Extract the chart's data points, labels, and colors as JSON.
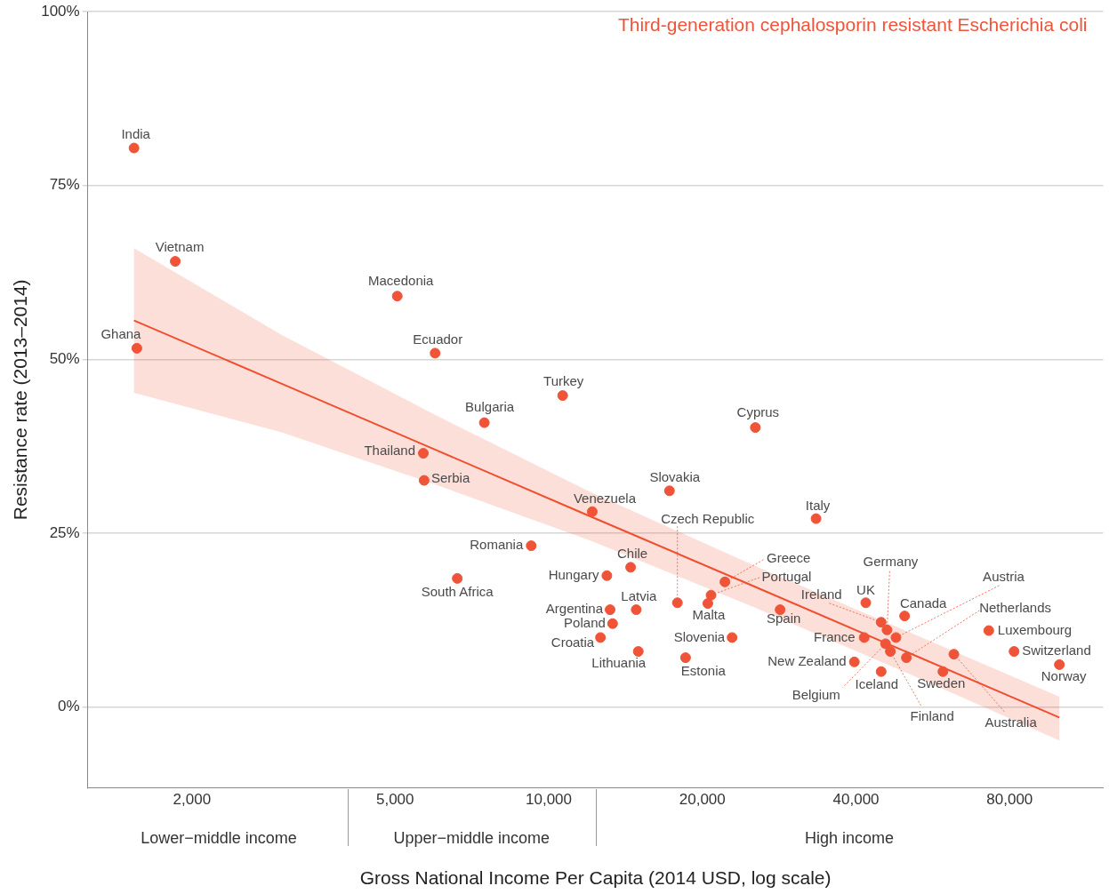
{
  "chart_data": {
    "type": "scatter",
    "title": "Third-generation cephalosporin resistant Escherichia coli",
    "xlabel": "Gross National Income Per Capita (2014 USD, log scale)",
    "ylabel": "Resistance rate (2013–2014)",
    "log": "x",
    "grid": "y",
    "xlim": [
      1250,
      122000
    ],
    "ylim": [
      -11.6,
      100
    ],
    "xticks": [
      {
        "value": 2000,
        "label": "2,000"
      },
      {
        "value": 5000,
        "label": "5,000"
      },
      {
        "value": 10000,
        "label": "10,000"
      },
      {
        "value": 20000,
        "label": "20,000"
      },
      {
        "value": 40000,
        "label": "40,000"
      },
      {
        "value": 80000,
        "label": "80,000"
      }
    ],
    "yticks": [
      {
        "value": 0,
        "label": "0%"
      },
      {
        "value": 25,
        "label": "25%"
      },
      {
        "value": 50,
        "label": "50%"
      },
      {
        "value": 75,
        "label": "75%"
      },
      {
        "value": 100,
        "label": "100%"
      }
    ],
    "series": [
      {
        "color": "#ef5338",
        "marker": "circle",
        "x": [
          1540,
          1855,
          1560,
          5050,
          5990,
          10650,
          7480,
          25400,
          5680,
          5700,
          17240,
          12170,
          33400,
          9240,
          6620,
          14470,
          13000,
          17870,
          22140,
          20800,
          20500,
          13190,
          14840,
          13340,
          12630,
          14980,
          18540,
          22870,
          28400,
          41800,
          49800,
          41500,
          39700,
          44800,
          44800,
          46000,
          47900,
          50200,
          45700,
          46700,
          59200,
          62200,
          72800,
          81600,
          100100
        ],
        "values": [
          80.4,
          64.1,
          51.6,
          59.1,
          50.9,
          44.8,
          40.9,
          40.2,
          36.5,
          32.6,
          31.1,
          28.1,
          27.1,
          23.2,
          18.5,
          20.1,
          18.9,
          15.0,
          18.0,
          16.1,
          14.9,
          14.0,
          14.0,
          12.0,
          10.0,
          8.0,
          7.1,
          10.0,
          14.0,
          15.0,
          13.1,
          10.0,
          6.5,
          5.1,
          12.2,
          11.1,
          10.0,
          7.1,
          9.1,
          8.0,
          5.1,
          7.6,
          11.0,
          8.0,
          6.1
        ]
      },
      {
        "type": "line",
        "color": "#f04e2e",
        "x": [
          1540,
          3000,
          6000,
          12000,
          25000,
          50000,
          100100
        ],
        "values": [
          55.6,
          46.5,
          37.0,
          27.5,
          17.5,
          8.0,
          -1.5
        ],
        "lower": [
          45.2,
          39.5,
          32.0,
          24.0,
          14.5,
          5.0,
          -4.8
        ],
        "upper": [
          66.0,
          53.5,
          42.0,
          31.0,
          20.5,
          11.0,
          1.5
        ]
      }
    ],
    "annotations": [
      {
        "text": "India",
        "x": 1540,
        "y": 80.4
      },
      {
        "text": "Vietnam",
        "x": 1855,
        "y": 64.1
      },
      {
        "text": "Ghana",
        "x": 1560,
        "y": 51.6
      },
      {
        "text": "Macedonia",
        "x": 5050,
        "y": 59.1
      },
      {
        "text": "Ecuador",
        "x": 5990,
        "y": 50.9
      },
      {
        "text": "Turkey",
        "x": 10650,
        "y": 44.8
      },
      {
        "text": "Bulgaria",
        "x": 7480,
        "y": 40.9
      },
      {
        "text": "Cyprus",
        "x": 25400,
        "y": 40.2
      },
      {
        "text": "Thailand",
        "x": 5680,
        "y": 36.5
      },
      {
        "text": "Serbia",
        "x": 5700,
        "y": 32.6
      },
      {
        "text": "Slovakia",
        "x": 17240,
        "y": 31.1
      },
      {
        "text": "Venezuela",
        "x": 12170,
        "y": 28.1
      },
      {
        "text": "Italy",
        "x": 33400,
        "y": 27.1
      },
      {
        "text": "Romania",
        "x": 9240,
        "y": 23.2
      },
      {
        "text": "South Africa",
        "x": 6620,
        "y": 18.5
      },
      {
        "text": "Chile",
        "x": 14470,
        "y": 20.1
      },
      {
        "text": "Hungary",
        "x": 13000,
        "y": 18.9
      },
      {
        "text": "Czech Republic",
        "x": 17870,
        "y": 15.0
      },
      {
        "text": "Greece",
        "x": 22140,
        "y": 18.0
      },
      {
        "text": "Portugal",
        "x": 20800,
        "y": 16.1
      },
      {
        "text": "Malta",
        "x": 20500,
        "y": 14.9
      },
      {
        "text": "Argentina",
        "x": 13190,
        "y": 14.0
      },
      {
        "text": "Latvia",
        "x": 14840,
        "y": 14.0
      },
      {
        "text": "Poland",
        "x": 13340,
        "y": 12.0
      },
      {
        "text": "Croatia",
        "x": 12630,
        "y": 10.0
      },
      {
        "text": "Lithuania",
        "x": 14980,
        "y": 8.0
      },
      {
        "text": "Estonia",
        "x": 18540,
        "y": 7.1
      },
      {
        "text": "Slovenia",
        "x": 22870,
        "y": 10.0
      },
      {
        "text": "Spain",
        "x": 28400,
        "y": 14.0
      },
      {
        "text": "UK",
        "x": 41800,
        "y": 15.0
      },
      {
        "text": "Canada",
        "x": 49800,
        "y": 13.1
      },
      {
        "text": "France",
        "x": 41500,
        "y": 10.0
      },
      {
        "text": "New Zealand",
        "x": 39700,
        "y": 6.5
      },
      {
        "text": "Iceland",
        "x": 44800,
        "y": 5.1
      },
      {
        "text": "Ireland",
        "x": 44800,
        "y": 12.2
      },
      {
        "text": "Germany",
        "x": 46000,
        "y": 11.1
      },
      {
        "text": "Austria",
        "x": 47900,
        "y": 10.0
      },
      {
        "text": "Netherlands",
        "x": 50200,
        "y": 7.1
      },
      {
        "text": "Belgium",
        "x": 45700,
        "y": 9.1
      },
      {
        "text": "Finland",
        "x": 46700,
        "y": 8.0
      },
      {
        "text": "Sweden",
        "x": 59200,
        "y": 5.1
      },
      {
        "text": "Australia",
        "x": 62200,
        "y": 7.6
      },
      {
        "text": "Luxembourg",
        "x": 72800,
        "y": 11.0
      },
      {
        "text": "Switzerland",
        "x": 81600,
        "y": 8.0
      },
      {
        "text": "Norway",
        "x": 100100,
        "y": 6.1
      },
      "Lower−middle income",
      "Upper−middle income",
      "High income"
    ]
  }
}
